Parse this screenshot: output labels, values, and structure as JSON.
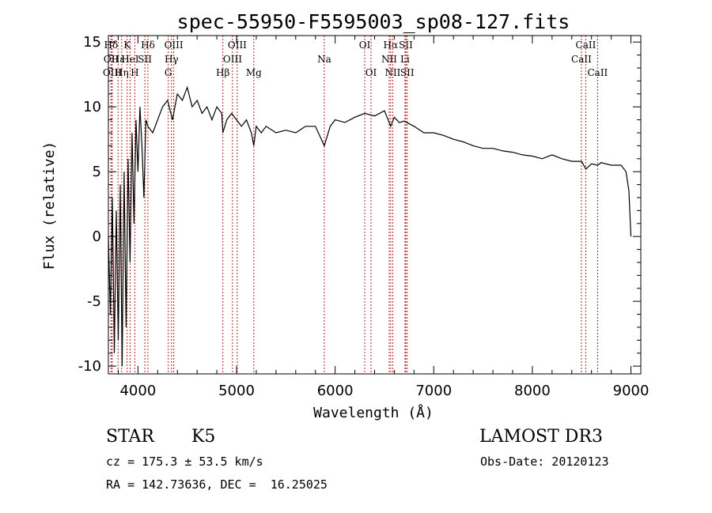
{
  "chart_data": {
    "type": "line",
    "title": "spec-55950-F5595003_sp08-127.fits",
    "xlabel": "Wavelength (Å)",
    "ylabel": "Flux (relative)",
    "xlim": [
      3700,
      9100
    ],
    "ylim": [
      -10.6,
      15.5
    ],
    "x_ticks": [
      4000,
      5000,
      6000,
      7000,
      8000,
      9000
    ],
    "y_ticks": [
      -10,
      -5,
      0,
      5,
      10,
      15
    ],
    "x_tick_labels": [
      "4000",
      "5000",
      "6000",
      "7000",
      "8000",
      "9000"
    ],
    "y_tick_labels": [
      "-10",
      "-5",
      "0",
      "5",
      "10",
      "15"
    ],
    "line_color": "#000000",
    "marker_color": "#b22222",
    "series": [
      {
        "name": "flux",
        "x": [
          3700,
          3720,
          3740,
          3760,
          3780,
          3800,
          3820,
          3840,
          3860,
          3880,
          3900,
          3920,
          3940,
          3960,
          3980,
          4000,
          4020,
          4040,
          4060,
          4080,
          4100,
          4150,
          4200,
          4250,
          4300,
          4350,
          4400,
          4450,
          4500,
          4550,
          4600,
          4650,
          4700,
          4750,
          4800,
          4850,
          4861,
          4900,
          4950,
          5000,
          5050,
          5100,
          5150,
          5175,
          5200,
          5250,
          5300,
          5400,
          5500,
          5600,
          5700,
          5800,
          5890,
          5950,
          6000,
          6100,
          6200,
          6300,
          6400,
          6500,
          6563,
          6600,
          6650,
          6700,
          6800,
          6900,
          7000,
          7100,
          7200,
          7300,
          7400,
          7500,
          7600,
          7700,
          7800,
          7900,
          8000,
          8100,
          8200,
          8300,
          8400,
          8500,
          8542,
          8600,
          8662,
          8700,
          8800,
          8900,
          8950,
          8980,
          9000
        ],
        "y": [
          0,
          -6,
          3,
          -9,
          2,
          -8,
          4,
          -10,
          5,
          -7,
          6,
          -2,
          8,
          1,
          9,
          5,
          10,
          7,
          3,
          9,
          8.5,
          8,
          9,
          10,
          10.5,
          9,
          11,
          10.5,
          11.5,
          10,
          10.5,
          9.5,
          10,
          9,
          10,
          9.5,
          8,
          9,
          9.5,
          9,
          8.5,
          9,
          8,
          7,
          8.5,
          8,
          8.5,
          8,
          8.2,
          8,
          8.5,
          8.5,
          7,
          8.5,
          9,
          8.8,
          9.2,
          9.5,
          9.3,
          9.7,
          8.5,
          9.2,
          8.8,
          8.9,
          8.5,
          8,
          8,
          7.8,
          7.5,
          7.3,
          7,
          6.8,
          6.8,
          6.6,
          6.5,
          6.3,
          6.2,
          6,
          6.3,
          6,
          5.8,
          5.8,
          5.2,
          5.6,
          5.5,
          5.7,
          5.5,
          5.5,
          5,
          3.5,
          0
        ]
      }
    ],
    "lines": [
      {
        "name": "Hδ",
        "wl": 3727,
        "row": 0
      },
      {
        "name": "OII",
        "wl": 3728,
        "row": 1
      },
      {
        "name": "OIII",
        "wl": 3740,
        "row": 2
      },
      {
        "name": "Hε",
        "wl": 3798,
        "row": 1
      },
      {
        "name": "Hη",
        "wl": 3835,
        "row": 2
      },
      {
        "name": "K",
        "wl": 3890,
        "row": 0
      },
      {
        "name": "HeI",
        "wl": 3920,
        "row": 1
      },
      {
        "name": "H",
        "wl": 3968,
        "row": 2
      },
      {
        "name": "SII",
        "wl": 4070,
        "row": 1
      },
      {
        "name": "Hδ",
        "wl": 4101,
        "row": 0
      },
      {
        "name": "OIII",
        "wl": 4363,
        "row": 0
      },
      {
        "name": "Hγ",
        "wl": 4340,
        "row": 1
      },
      {
        "name": "G",
        "wl": 4307,
        "row": 2
      },
      {
        "name": "Hβ",
        "wl": 4861,
        "row": 2
      },
      {
        "name": "OIII",
        "wl": 5007,
        "row": 0
      },
      {
        "name": "OIII",
        "wl": 4959,
        "row": 1
      },
      {
        "name": "Mg",
        "wl": 5175,
        "row": 2
      },
      {
        "name": "Na",
        "wl": 5890,
        "row": 1
      },
      {
        "name": "OI",
        "wl": 6300,
        "row": 0
      },
      {
        "name": "OI",
        "wl": 6364,
        "row": 2
      },
      {
        "name": "Hα",
        "wl": 6563,
        "row": 0
      },
      {
        "name": "NII",
        "wl": 6548,
        "row": 1
      },
      {
        "name": "NII",
        "wl": 6584,
        "row": 2
      },
      {
        "name": "SII",
        "wl": 6717,
        "row": 0
      },
      {
        "name": "Li",
        "wl": 6708,
        "row": 1
      },
      {
        "name": "SII",
        "wl": 6731,
        "row": 2
      },
      {
        "name": "CaII",
        "wl": 8542,
        "row": 0
      },
      {
        "name": "CaII",
        "wl": 8498,
        "row": 1
      },
      {
        "name": "CaII",
        "wl": 8662,
        "row": 2
      }
    ]
  },
  "info": {
    "object_class": "STAR",
    "subclass": "K5",
    "survey": "LAMOST DR3",
    "redshift": "cz = 175.3 ± 53.5 km/s",
    "obs_date": "Obs-Date: 20120123",
    "coords": "RA = 142.73636, DEC =  16.25025"
  }
}
